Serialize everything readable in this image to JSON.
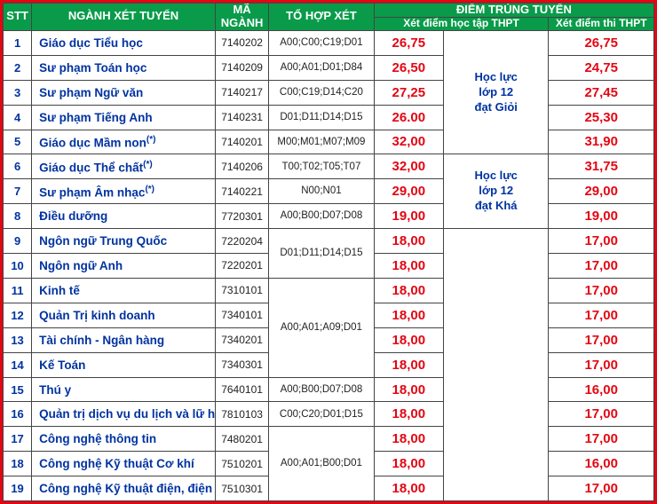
{
  "header": {
    "stt": "STT",
    "nganh": "NGÀNH XÉT TUYỂN",
    "ma": "MÃ NGÀNH",
    "tohop": "TỔ HỢP XÉT",
    "diem": "ĐIỂM TRÚNG TUYỂN",
    "sub_hoctap": "Xét điểm học tập THPT",
    "sub_thi": "Xét điểm thi THPT"
  },
  "requirements": {
    "gioi": "Học lực\nlớp 12\nđạt Giỏi",
    "kha": "Học lực\nlớp 12\nđạt Khá"
  },
  "combos": {
    "r1": "A00;C00;C19;D01",
    "r2": "A00;A01;D01;D84",
    "r3": "C00;C19;D14;C20",
    "r4": "D01;D11;D14;D15",
    "r5": "M00;M01;M07;M09",
    "r6": "T00;T02;T05;T07",
    "r7": "N00;N01",
    "r8": "A00;B00;D07;D08",
    "r9_10": "D01;D11;D14;D15",
    "r11_14": "A00;A01;A09;D01",
    "r15": "A00;B00;D07;D08",
    "r16": "C00;C20;D01;D15",
    "r17_19": "A00;A01;B00;D01"
  },
  "rows": [
    {
      "stt": "1",
      "name": "Giáo dục Tiểu học",
      "sup": "",
      "code": "7140202",
      "score": "26,75",
      "thi": "26,75"
    },
    {
      "stt": "2",
      "name": "Sư phạm Toán học",
      "sup": "",
      "code": "7140209",
      "score": "26,50",
      "thi": "24,75"
    },
    {
      "stt": "3",
      "name": "Sư phạm Ngữ văn",
      "sup": "",
      "code": "7140217",
      "score": "27,25",
      "thi": "27,45"
    },
    {
      "stt": "4",
      "name": "Sư phạm Tiếng Anh",
      "sup": "",
      "code": "7140231",
      "score": "26.00",
      "thi": "25,30"
    },
    {
      "stt": "5",
      "name": "Giáo dục Mầm non",
      "sup": "(*)",
      "code": "7140201",
      "score": "32,00",
      "thi": "31,90"
    },
    {
      "stt": "6",
      "name": "Giáo dục Thể chất",
      "sup": "(*)",
      "code": "7140206",
      "score": "32,00",
      "thi": "31,75"
    },
    {
      "stt": "7",
      "name": "Sư phạm Âm nhạc",
      "sup": "(*)",
      "code": "7140221",
      "score": "29,00",
      "thi": "29,00"
    },
    {
      "stt": "8",
      "name": "Điều dưỡng",
      "sup": "",
      "code": "7720301",
      "score": "19,00",
      "thi": "19,00"
    },
    {
      "stt": "9",
      "name": "Ngôn ngữ Trung Quốc",
      "sup": "",
      "code": "7220204",
      "score": "18,00",
      "thi": "17,00"
    },
    {
      "stt": "10",
      "name": "Ngôn ngữ Anh",
      "sup": "",
      "code": "7220201",
      "score": "18,00",
      "thi": "17,00"
    },
    {
      "stt": "11",
      "name": "Kinh tế",
      "sup": "",
      "code": "7310101",
      "score": "18,00",
      "thi": "17,00"
    },
    {
      "stt": "12",
      "name": "Quản Trị kinh doanh",
      "sup": "",
      "code": "7340101",
      "score": "18,00",
      "thi": "17,00"
    },
    {
      "stt": "13",
      "name": "Tài chính - Ngân hàng",
      "sup": "",
      "code": "7340201",
      "score": "18,00",
      "thi": "17,00"
    },
    {
      "stt": "14",
      "name": "Kế Toán",
      "sup": "",
      "code": "7340301",
      "score": "18,00",
      "thi": "17,00"
    },
    {
      "stt": "15",
      "name": "Thú y",
      "sup": "",
      "code": "7640101",
      "score": "18,00",
      "thi": "16,00"
    },
    {
      "stt": "16",
      "name": "Quản trị dịch vụ du lịch và lữ hành",
      "sup": "",
      "code": "7810103",
      "score": "18,00",
      "thi": "17,00"
    },
    {
      "stt": "17",
      "name": "Công nghệ thông tin",
      "sup": "",
      "code": "7480201",
      "score": "18,00",
      "thi": "17,00"
    },
    {
      "stt": "18",
      "name": "Công nghệ Kỹ thuật Cơ khí",
      "sup": "",
      "code": "7510201",
      "score": "18,00",
      "thi": "16,00"
    },
    {
      "stt": "19",
      "name": "Công nghệ Kỹ thuật điện, điện tử",
      "sup": "",
      "code": "7510301",
      "score": "18,00",
      "thi": "17,00"
    }
  ],
  "colors": {
    "border_outer": "#e30613",
    "header_bg": "#0a9b4a",
    "header_fg": "#ffffff",
    "cell_border": "#444444",
    "blue_text": "#0033a0",
    "red_text": "#e30613",
    "black_text": "#222222",
    "background": "#ffffff"
  }
}
